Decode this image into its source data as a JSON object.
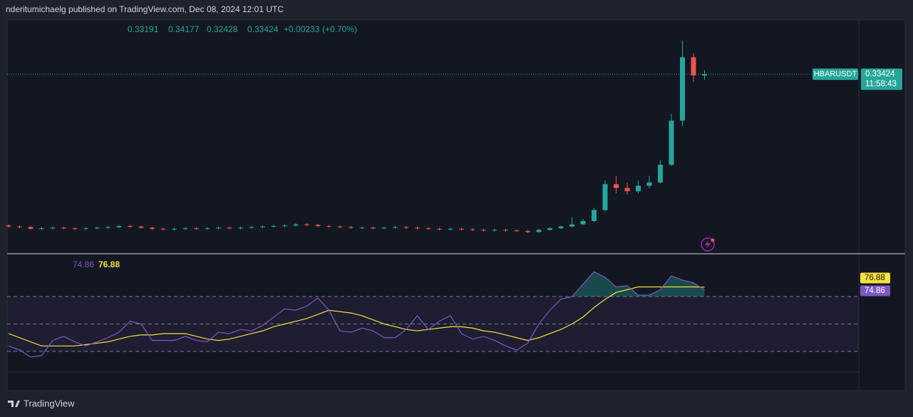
{
  "header": {
    "published": "nderitumichaelg published on TradingView.com, Dec 08, 2024 12:01 UTC"
  },
  "chart_data": [
    {
      "type": "candlestick",
      "symbol": "HBARUSDT",
      "countdown": "11:58:43",
      "change_label": "+0.00233",
      "change_pct_label": "(+0.70%)",
      "open": [
        0.06,
        0.058,
        0.057,
        0.054,
        0.055,
        0.056,
        0.055,
        0.054,
        0.055,
        0.056,
        0.057,
        0.059,
        0.058,
        0.056,
        0.054,
        0.053,
        0.054,
        0.055,
        0.054,
        0.055,
        0.056,
        0.055,
        0.056,
        0.057,
        0.058,
        0.059,
        0.06,
        0.062,
        0.061,
        0.059,
        0.058,
        0.057,
        0.056,
        0.056,
        0.055,
        0.056,
        0.057,
        0.056,
        0.055,
        0.054,
        0.053,
        0.054,
        0.053,
        0.052,
        0.051,
        0.052,
        0.051,
        0.05,
        0.048,
        0.052,
        0.055,
        0.058,
        0.062,
        0.068,
        0.088,
        0.135,
        0.128,
        0.122,
        0.132,
        0.138,
        0.17,
        0.25,
        0.365,
        0.33191
      ],
      "high": [
        0.062,
        0.06,
        0.059,
        0.057,
        0.058,
        0.058,
        0.057,
        0.057,
        0.058,
        0.059,
        0.061,
        0.061,
        0.06,
        0.058,
        0.056,
        0.056,
        0.057,
        0.057,
        0.057,
        0.058,
        0.058,
        0.058,
        0.059,
        0.06,
        0.061,
        0.062,
        0.064,
        0.064,
        0.063,
        0.061,
        0.06,
        0.059,
        0.058,
        0.058,
        0.058,
        0.059,
        0.059,
        0.058,
        0.057,
        0.056,
        0.056,
        0.056,
        0.055,
        0.054,
        0.054,
        0.054,
        0.053,
        0.052,
        0.054,
        0.057,
        0.06,
        0.075,
        0.072,
        0.092,
        0.142,
        0.15,
        0.138,
        0.142,
        0.15,
        0.178,
        0.262,
        0.395,
        0.372,
        0.34177
      ],
      "low": [
        0.056,
        0.055,
        0.052,
        0.052,
        0.053,
        0.053,
        0.052,
        0.052,
        0.053,
        0.054,
        0.055,
        0.056,
        0.054,
        0.052,
        0.051,
        0.051,
        0.052,
        0.052,
        0.052,
        0.053,
        0.053,
        0.053,
        0.054,
        0.055,
        0.056,
        0.057,
        0.058,
        0.059,
        0.057,
        0.056,
        0.055,
        0.054,
        0.054,
        0.053,
        0.053,
        0.054,
        0.054,
        0.053,
        0.052,
        0.051,
        0.051,
        0.051,
        0.05,
        0.049,
        0.049,
        0.049,
        0.048,
        0.046,
        0.047,
        0.051,
        0.054,
        0.057,
        0.061,
        0.066,
        0.086,
        0.118,
        0.116,
        0.118,
        0.128,
        0.136,
        0.168,
        0.24,
        0.32,
        0.32428
      ],
      "close": [
        0.058,
        0.057,
        0.054,
        0.055,
        0.056,
        0.055,
        0.054,
        0.055,
        0.056,
        0.057,
        0.059,
        0.058,
        0.056,
        0.054,
        0.053,
        0.054,
        0.055,
        0.054,
        0.055,
        0.056,
        0.055,
        0.056,
        0.057,
        0.058,
        0.059,
        0.06,
        0.062,
        0.061,
        0.059,
        0.058,
        0.057,
        0.056,
        0.056,
        0.055,
        0.056,
        0.057,
        0.056,
        0.055,
        0.054,
        0.053,
        0.054,
        0.053,
        0.052,
        0.051,
        0.052,
        0.051,
        0.05,
        0.048,
        0.052,
        0.055,
        0.058,
        0.062,
        0.068,
        0.088,
        0.135,
        0.128,
        0.122,
        0.132,
        0.138,
        0.17,
        0.25,
        0.365,
        0.332,
        0.33424
      ],
      "ylim": [
        0.01,
        0.43
      ],
      "colors": {
        "up": "#26a69a",
        "down": "#ef5350"
      }
    },
    {
      "type": "line",
      "series": [
        {
          "color": "#7e57c2",
          "values": [
            34,
            31,
            26,
            27,
            38,
            41,
            37,
            34,
            37,
            40,
            44,
            52,
            50,
            38,
            38,
            38,
            41,
            38,
            37,
            44,
            43,
            46,
            45,
            49,
            55,
            61,
            60,
            63,
            69,
            60,
            45,
            44,
            47,
            45,
            40,
            40,
            46,
            56,
            46,
            52,
            56,
            43,
            39,
            41,
            38,
            34,
            31,
            36,
            50,
            60,
            68,
            70,
            79,
            88,
            84,
            77,
            78,
            71,
            71,
            75,
            85,
            82,
            80,
            74.86
          ]
        },
        {
          "color": "#f7e13d",
          "values": [
            43,
            40,
            37,
            34,
            34,
            34,
            34,
            35,
            36,
            37,
            39,
            41,
            42,
            42,
            43,
            43,
            43,
            41,
            39,
            38,
            39,
            41,
            43,
            45,
            48,
            50,
            52,
            54,
            57,
            60,
            59,
            58,
            56,
            53,
            50,
            48,
            46,
            45,
            46,
            47,
            48,
            48,
            47,
            45,
            44,
            42,
            40,
            38,
            40,
            43,
            46,
            50,
            55,
            62,
            68,
            73,
            75,
            77,
            77,
            77,
            77,
            77,
            77,
            76.88
          ]
        }
      ],
      "levels": [
        70,
        50,
        30
      ],
      "ylim": [
        0,
        100
      ],
      "band_color": "#7e57c2"
    }
  ],
  "footer": {
    "brand": "TradingView"
  }
}
